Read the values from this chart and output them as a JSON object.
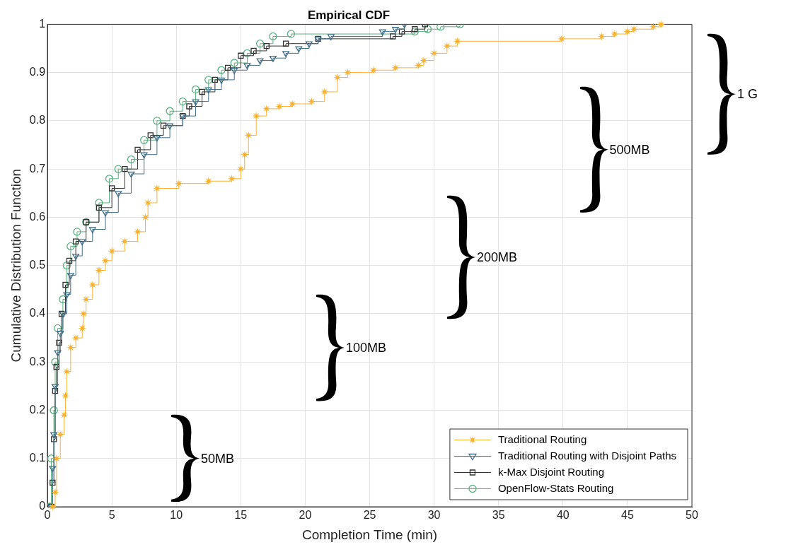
{
  "chart_data": {
    "type": "step",
    "title": "Empirical CDF",
    "xlabel": "Completion Time (min)",
    "ylabel": "Cumulative Distribution Function",
    "xlim": [
      0,
      50
    ],
    "xticks": [
      0,
      5,
      10,
      15,
      20,
      25,
      30,
      35,
      40,
      45,
      50
    ],
    "ylim": [
      0,
      1
    ],
    "yticks": [
      0,
      0.1,
      0.2,
      0.3,
      0.4,
      0.5,
      0.6,
      0.7,
      0.8,
      0.9,
      1
    ],
    "grid": true,
    "legend": "bottom right",
    "annotations": [
      "50MB",
      "100MB",
      "200MB",
      "500MB",
      "1 G"
    ],
    "series": [
      {
        "name": "Traditional Routing",
        "color": "#f9b233",
        "marker": "star",
        "x": [
          0.4,
          0.6,
          0.7,
          1.0,
          1.3,
          1.4,
          1.5,
          1.8,
          2.2,
          2.7,
          2.8,
          3.0,
          3.5,
          4.0,
          4.5,
          5.0,
          6.0,
          7.0,
          7.6,
          7.8,
          8.5,
          10.2,
          12.5,
          14.3,
          15.0,
          15.3,
          15.6,
          16.2,
          17.0,
          18.0,
          19.0,
          20.5,
          21.5,
          22.5,
          23.3,
          25.3,
          27.0,
          28.8,
          29.2,
          30.0,
          31.0,
          31.8,
          39.9,
          43.0,
          44.0,
          45.0,
          45.5,
          47.0,
          47.6
        ],
        "values": [
          0,
          0.03,
          0.1,
          0.15,
          0.19,
          0.23,
          0.28,
          0.33,
          0.35,
          0.37,
          0.4,
          0.43,
          0.46,
          0.49,
          0.51,
          0.53,
          0.55,
          0.57,
          0.6,
          0.63,
          0.66,
          0.67,
          0.675,
          0.68,
          0.7,
          0.73,
          0.77,
          0.81,
          0.825,
          0.83,
          0.835,
          0.84,
          0.86,
          0.89,
          0.9,
          0.905,
          0.91,
          0.915,
          0.925,
          0.94,
          0.955,
          0.965,
          0.97,
          0.975,
          0.98,
          0.985,
          0.99,
          0.995,
          1.0
        ]
      },
      {
        "name": "Traditional Routing with Disjoint Paths",
        "color": "#3f6f8a",
        "marker": "triangle",
        "x": [
          0.3,
          0.4,
          0.5,
          0.6,
          0.8,
          1.0,
          1.2,
          1.5,
          1.8,
          2.2,
          2.7,
          3.5,
          4.5,
          5.5,
          6.5,
          7.5,
          8.5,
          9.5,
          10.5,
          11.5,
          12.5,
          13.5,
          14.5,
          15.5,
          16.5,
          17.5,
          18.5,
          19.5,
          20.3,
          21.0,
          22.0,
          26.0,
          27.0,
          27.7
        ],
        "values": [
          0,
          0.08,
          0.15,
          0.25,
          0.32,
          0.36,
          0.4,
          0.44,
          0.48,
          0.52,
          0.55,
          0.575,
          0.61,
          0.65,
          0.69,
          0.73,
          0.765,
          0.79,
          0.81,
          0.84,
          0.865,
          0.885,
          0.905,
          0.915,
          0.925,
          0.93,
          0.94,
          0.95,
          0.96,
          0.97,
          0.975,
          0.985,
          0.99,
          1.0
        ]
      },
      {
        "name": "k-Max Disjoint Routing",
        "color": "#333333",
        "marker": "square",
        "x": [
          0.3,
          0.4,
          0.5,
          0.6,
          0.7,
          0.9,
          1.1,
          1.4,
          1.7,
          2.2,
          3.0,
          4.0,
          5.0,
          6.0,
          7.0,
          8.0,
          9.0,
          10.5,
          11.0,
          12.0,
          13.0,
          14.0,
          15.0,
          16.0,
          17.0,
          18.5,
          21.0,
          26.8,
          27.5,
          28.5,
          29.3
        ],
        "values": [
          0,
          0.05,
          0.14,
          0.24,
          0.29,
          0.34,
          0.4,
          0.46,
          0.51,
          0.55,
          0.59,
          0.62,
          0.66,
          0.7,
          0.74,
          0.77,
          0.79,
          0.81,
          0.83,
          0.86,
          0.885,
          0.91,
          0.935,
          0.945,
          0.955,
          0.96,
          0.97,
          0.975,
          0.985,
          0.99,
          1.0
        ]
      },
      {
        "name": "OpenFlow-Stats Routing",
        "color": "#5bb07f",
        "marker": "circle",
        "x": [
          0.2,
          0.3,
          0.5,
          0.6,
          0.8,
          1.2,
          1.5,
          1.8,
          2.3,
          3.0,
          4.0,
          4.8,
          5.5,
          6.5,
          7.5,
          8.5,
          9.5,
          10.5,
          11.5,
          12.5,
          13.5,
          14.5,
          15.5,
          16.5,
          17.5,
          18.9,
          28.5,
          29.5,
          30.5,
          32.0
        ],
        "values": [
          0,
          0.1,
          0.2,
          0.3,
          0.37,
          0.43,
          0.5,
          0.54,
          0.57,
          0.59,
          0.63,
          0.68,
          0.7,
          0.72,
          0.76,
          0.8,
          0.82,
          0.84,
          0.865,
          0.885,
          0.905,
          0.92,
          0.94,
          0.96,
          0.975,
          0.98,
          0.985,
          0.99,
          0.995,
          1.0
        ]
      }
    ]
  }
}
